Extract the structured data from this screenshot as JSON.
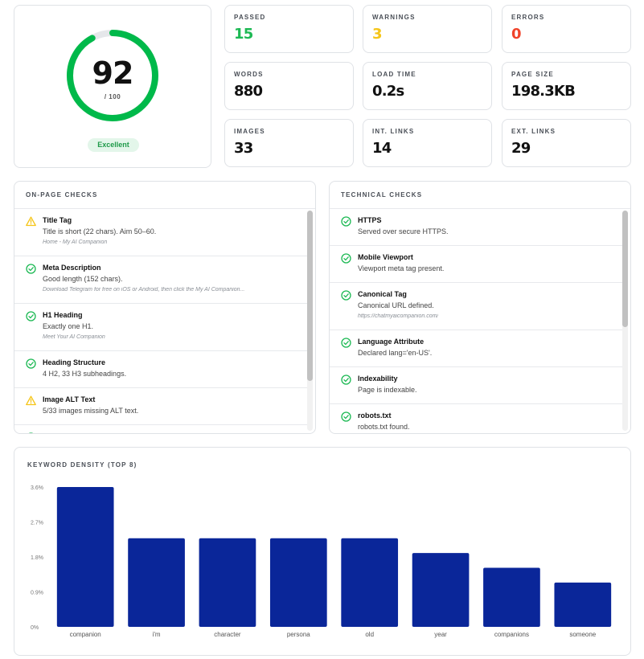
{
  "score": {
    "value": "92",
    "out_of": "/ 100",
    "fraction": 0.92,
    "badge": "Excellent",
    "ring_color": "#00b94a",
    "track_color": "#e5e7ea"
  },
  "stats": [
    {
      "label": "PASSED",
      "value": "15",
      "color": "#1db954"
    },
    {
      "label": "WARNINGS",
      "value": "3",
      "color": "#f5c518"
    },
    {
      "label": "ERRORS",
      "value": "0",
      "color": "#f0432a"
    },
    {
      "label": "WORDS",
      "value": "880",
      "color": "#111111"
    },
    {
      "label": "LOAD TIME",
      "value": "0.2s",
      "color": "#111111"
    },
    {
      "label": "PAGE SIZE",
      "value": "198.3KB",
      "color": "#111111"
    },
    {
      "label": "IMAGES",
      "value": "33",
      "color": "#111111"
    },
    {
      "label": "INT. LINKS",
      "value": "14",
      "color": "#111111"
    },
    {
      "label": "EXT. LINKS",
      "value": "29",
      "color": "#111111"
    }
  ],
  "onpage": {
    "title": "ON-PAGE CHECKS",
    "items": [
      {
        "status": "warning",
        "title": "Title Tag",
        "desc": "Title is short (22 chars). Aim 50–60.",
        "note": "Home - My AI Companion"
      },
      {
        "status": "pass",
        "title": "Meta Description",
        "desc": "Good length (152 chars).",
        "note": "Download Telegram for free on iOS or Android, then click the My AI Companion..."
      },
      {
        "status": "pass",
        "title": "H1 Heading",
        "desc": "Exactly one H1.",
        "note": "Meet Your AI Companion"
      },
      {
        "status": "pass",
        "title": "Heading Structure",
        "desc": "4 H2, 33 H3 subheadings.",
        "note": ""
      },
      {
        "status": "warning",
        "title": "Image ALT Text",
        "desc": "5/33 images missing ALT text.",
        "note": ""
      },
      {
        "status": "pass",
        "title": "",
        "desc": "",
        "note": ""
      }
    ]
  },
  "technical": {
    "title": "TECHNICAL CHECKS",
    "items": [
      {
        "status": "pass",
        "title": "HTTPS",
        "desc": "Served over secure HTTPS.",
        "note": ""
      },
      {
        "status": "pass",
        "title": "Mobile Viewport",
        "desc": "Viewport meta tag present.",
        "note": ""
      },
      {
        "status": "pass",
        "title": "Canonical Tag",
        "desc": "Canonical URL defined.",
        "note": "https://chatmyaicompanion.com/"
      },
      {
        "status": "pass",
        "title": "Language Attribute",
        "desc": "Declared lang='en-US'.",
        "note": ""
      },
      {
        "status": "pass",
        "title": "Indexability",
        "desc": "Page is indexable.",
        "note": ""
      },
      {
        "status": "pass",
        "title": "robots.txt",
        "desc": "robots.txt found.",
        "note": ""
      }
    ]
  },
  "keyword": {
    "title": "KEYWORD DENSITY (TOP 8)"
  },
  "chart_data": {
    "type": "bar",
    "categories": [
      "companion",
      "i'm",
      "character",
      "persona",
      "old",
      "year",
      "companions",
      "someone"
    ],
    "values": [
      3.6,
      2.28,
      2.28,
      2.28,
      2.28,
      1.9,
      1.52,
      1.14
    ],
    "ytick_labels": [
      "0%",
      "0.9%",
      "1.8%",
      "2.7%",
      "3.6%"
    ],
    "ytick_values": [
      0,
      0.9,
      1.8,
      2.7,
      3.6
    ],
    "ylim": [
      0,
      3.6
    ],
    "bar_color": "#0a2699",
    "grid": false
  },
  "colors": {
    "pass": "#1db954",
    "warning": "#f5c518"
  }
}
